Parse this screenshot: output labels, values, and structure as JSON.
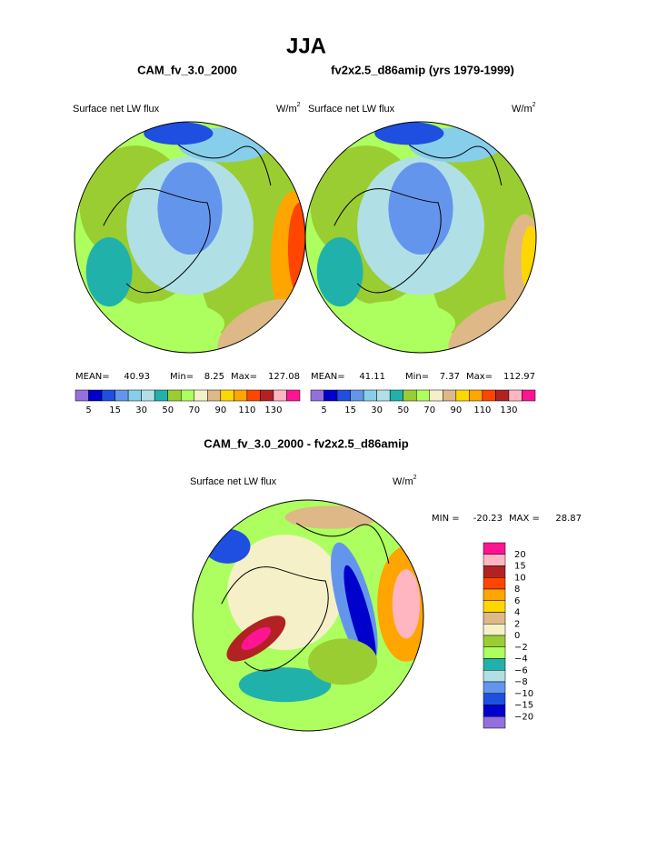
{
  "title": "JJA",
  "panels": [
    {
      "case": "CAM_fv_3.0_2000",
      "variable": "Surface net LW flux",
      "units": "W/m",
      "units_sup": "2",
      "mean_label": "MEAN=",
      "mean": 40.93,
      "min_label": "Min=",
      "min": 8.25,
      "max_label": "Max=",
      "max": 127.08
    },
    {
      "case": "fv2x2.5_d86amip (yrs 1979-1999)",
      "variable": "Surface net LW flux",
      "units": "W/m",
      "units_sup": "2",
      "mean_label": "MEAN=",
      "mean": 41.11,
      "min_label": "Min=",
      "min": 7.37,
      "max_label": "Max=",
      "max": 112.97
    }
  ],
  "colorbar": {
    "colors": [
      "#9370db",
      "#0000cd",
      "#1e4fe0",
      "#6495ed",
      "#87ceeb",
      "#b0e0e6",
      "#20b2aa",
      "#9acd32",
      "#adff5f",
      "#f5f0c8",
      "#deb887",
      "#ffd700",
      "#ffa500",
      "#ff4500",
      "#b22222",
      "#ffb6c1",
      "#ff1493"
    ],
    "labels": [
      5,
      15,
      30,
      50,
      70,
      90,
      110,
      130
    ]
  },
  "difference": {
    "title": "CAM_fv_3.0_2000 - fv2x2.5_d86amip",
    "variable": "Surface net LW flux",
    "units": "W/m",
    "units_sup": "2",
    "min_label": "MIN =",
    "min": -20.23,
    "max_label": "MAX =",
    "max": 28.87,
    "colorbar": {
      "colors": [
        "#ff1493",
        "#ffb6c1",
        "#b22222",
        "#ff4500",
        "#ffa500",
        "#ffd700",
        "#deb887",
        "#f5f0c8",
        "#9acd32",
        "#adff5f",
        "#20b2aa",
        "#b0e0e6",
        "#6495ed",
        "#1e4fe0",
        "#0000cd",
        "#9370db"
      ],
      "labels": [
        20,
        15,
        10,
        8,
        6,
        4,
        2,
        0,
        {
          "value": -2,
          "label": "−2"
        },
        {
          "value": -4,
          "label": "−4"
        },
        {
          "value": -6,
          "label": "−6"
        },
        {
          "value": -8,
          "label": "−8"
        },
        {
          "value": -10,
          "label": "−10"
        },
        {
          "value": -15,
          "label": "−15"
        },
        {
          "value": -20,
          "label": "−20"
        }
      ]
    }
  }
}
